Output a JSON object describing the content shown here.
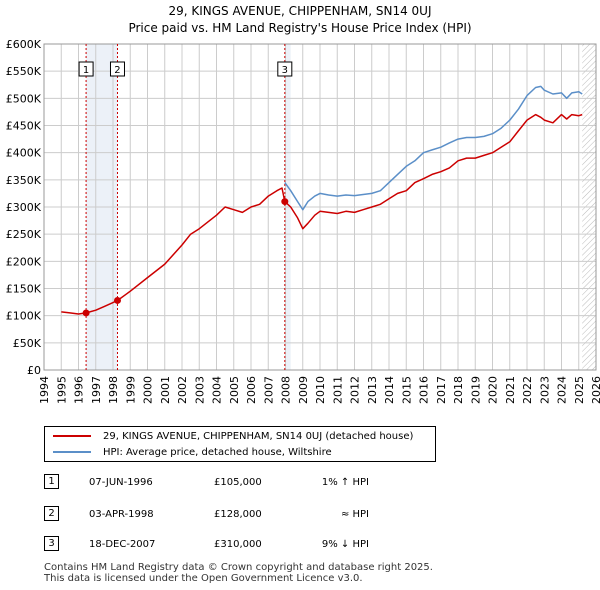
{
  "title": {
    "line1": "29, KINGS AVENUE, CHIPPENHAM, SN14 0UJ",
    "line2": "Price paid vs. HM Land Registry's House Price Index (HPI)"
  },
  "colors": {
    "property": "#cc0000",
    "hpi": "#5b8fc8",
    "grid": "#cccccc",
    "future": "#cccccc",
    "sale_line": "#cc0000",
    "band": "#dde6f3"
  },
  "chart_data": {
    "type": "line",
    "title": "Price paid vs. HM Land Registry's House Price Index (HPI)",
    "xlabel": "",
    "ylabel": "",
    "xlim": [
      1994,
      2026
    ],
    "ylim": [
      0,
      600000
    ],
    "x_ticks": [
      "1994",
      "1995",
      "1996",
      "1997",
      "1998",
      "1999",
      "2000",
      "2001",
      "2002",
      "2003",
      "2004",
      "2005",
      "2006",
      "2007",
      "2008",
      "2009",
      "2010",
      "2011",
      "2012",
      "2013",
      "2014",
      "2015",
      "2016",
      "2017",
      "2018",
      "2019",
      "2020",
      "2021",
      "2022",
      "2023",
      "2024",
      "2025",
      "2026"
    ],
    "y_ticks": [
      "£0",
      "£50K",
      "£100K",
      "£150K",
      "£200K",
      "£250K",
      "£300K",
      "£350K",
      "£400K",
      "£450K",
      "£500K",
      "£550K",
      "£600K"
    ],
    "y_tick_values": [
      0,
      50000,
      100000,
      150000,
      200000,
      250000,
      300000,
      350000,
      400000,
      450000,
      500000,
      550000,
      600000
    ],
    "grid": true,
    "shaded_bands": [
      [
        1996.44,
        1998.26
      ],
      [
        2007.96,
        2008.3
      ]
    ],
    "future_from": 2025.2,
    "sales": [
      {
        "label": "1",
        "x": 1996.44,
        "y": 105000
      },
      {
        "label": "2",
        "x": 1998.26,
        "y": 128000
      },
      {
        "label": "3",
        "x": 2007.96,
        "y": 310000
      }
    ],
    "series": [
      {
        "name": "29, KINGS AVENUE, CHIPPENHAM, SN14 0UJ (detached house)",
        "color": "#cc0000",
        "x": [
          1995.0,
          1995.5,
          1996.0,
          1996.44,
          1997.0,
          1997.5,
          1998.0,
          1998.26,
          1999.0,
          2000.0,
          2001.0,
          2002.0,
          2002.5,
          2003.0,
          2004.0,
          2004.5,
          2005.0,
          2005.5,
          2006.0,
          2006.5,
          2007.0,
          2007.5,
          2007.8,
          2007.96,
          2008.3,
          2008.7,
          2009.0,
          2009.3,
          2009.7,
          2010.0,
          2010.5,
          2011.0,
          2011.5,
          2012.0,
          2012.5,
          2013.0,
          2013.5,
          2014.0,
          2014.5,
          2015.0,
          2015.5,
          2016.0,
          2016.5,
          2017.0,
          2017.5,
          2018.0,
          2018.5,
          2019.0,
          2019.5,
          2020.0,
          2020.5,
          2021.0,
          2021.5,
          2022.0,
          2022.5,
          2022.8,
          2023.0,
          2023.5,
          2024.0,
          2024.3,
          2024.6,
          2025.0,
          2025.2
        ],
        "values": [
          107000,
          105000,
          103000,
          105000,
          110000,
          117000,
          124000,
          128000,
          145000,
          170000,
          195000,
          230000,
          250000,
          260000,
          285000,
          300000,
          295000,
          290000,
          300000,
          305000,
          320000,
          330000,
          335000,
          310000,
          300000,
          280000,
          260000,
          270000,
          285000,
          292000,
          290000,
          288000,
          292000,
          290000,
          295000,
          300000,
          305000,
          315000,
          325000,
          330000,
          345000,
          352000,
          360000,
          365000,
          372000,
          385000,
          390000,
          390000,
          395000,
          400000,
          410000,
          420000,
          440000,
          460000,
          470000,
          465000,
          460000,
          455000,
          470000,
          462000,
          470000,
          468000,
          470000
        ]
      },
      {
        "name": "HPI: Average price, detached house, Wiltshire",
        "color": "#5b8fc8",
        "x": [
          2007.96,
          2008.3,
          2008.7,
          2009.0,
          2009.3,
          2009.7,
          2010.0,
          2010.5,
          2011.0,
          2011.5,
          2012.0,
          2012.5,
          2013.0,
          2013.5,
          2014.0,
          2014.5,
          2015.0,
          2015.5,
          2016.0,
          2016.5,
          2017.0,
          2017.5,
          2018.0,
          2018.5,
          2019.0,
          2019.5,
          2020.0,
          2020.5,
          2021.0,
          2021.5,
          2022.0,
          2022.5,
          2022.8,
          2023.0,
          2023.5,
          2024.0,
          2024.3,
          2024.6,
          2025.0,
          2025.2
        ],
        "values": [
          345000,
          330000,
          310000,
          295000,
          310000,
          320000,
          325000,
          322000,
          320000,
          322000,
          321000,
          323000,
          325000,
          330000,
          345000,
          360000,
          375000,
          385000,
          400000,
          405000,
          410000,
          418000,
          425000,
          428000,
          428000,
          430000,
          435000,
          445000,
          460000,
          480000,
          505000,
          520000,
          522000,
          515000,
          508000,
          510000,
          500000,
          510000,
          512000,
          508000
        ]
      }
    ]
  },
  "legend": {
    "property": "29, KINGS AVENUE, CHIPPENHAM, SN14 0UJ (detached house)",
    "hpi": "HPI: Average price, detached house, Wiltshire"
  },
  "sales_table": [
    {
      "num": "1",
      "date": "07-JUN-1996",
      "price": "£105,000",
      "hpi": "1% ↑ HPI"
    },
    {
      "num": "2",
      "date": "03-APR-1998",
      "price": "£128,000",
      "hpi": "≈ HPI"
    },
    {
      "num": "3",
      "date": "18-DEC-2007",
      "price": "£310,000",
      "hpi": "9% ↓ HPI"
    }
  ],
  "footer": {
    "line1": "Contains HM Land Registry data © Crown copyright and database right 2025.",
    "line2": "This data is licensed under the Open Government Licence v3.0."
  }
}
